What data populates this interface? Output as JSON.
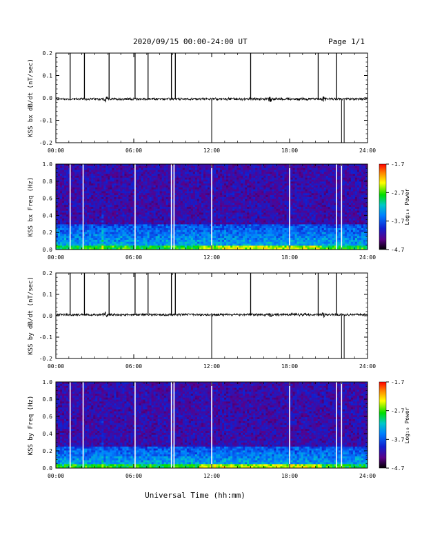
{
  "header": {
    "title": "2020/09/15  00:00-24:00 UT",
    "page": "Page 1/1"
  },
  "xlabel": "Universal Time (hh:mm)",
  "colorbar": {
    "label": "Log₁₀ Power",
    "ticks": [
      "-1.7",
      "-2.7",
      "-3.7",
      "-4.7"
    ],
    "range": [
      -4.7,
      -1.7
    ]
  },
  "chart_data": [
    {
      "type": "line",
      "title": "",
      "ylabel": "KSS bx dB/dt (nT/sec)",
      "xlabel": "",
      "xlim": [
        0,
        24
      ],
      "ylim": [
        -0.2,
        0.2
      ],
      "x_ticks": [
        "00:00",
        "06:00",
        "12:00",
        "18:00",
        "24:00"
      ],
      "y_ticks": [
        "0.2",
        "0.1",
        "0.0",
        "-0.1",
        "-0.2"
      ],
      "series": [
        {
          "baseline": -0.005,
          "spikes_up_hours": [
            1.1,
            2.2,
            4.1,
            6.1,
            7.1,
            8.9,
            9.2,
            15.0,
            20.2,
            21.6
          ],
          "spikes_down_hours": [
            12.0,
            22.0,
            22.2
          ],
          "disturbance_hours": [
            3.8,
            16.5,
            20.6
          ]
        }
      ]
    },
    {
      "type": "heatmap",
      "title": "",
      "ylabel": "KSS bx Freq (Hz)",
      "xlabel": "",
      "xlim": [
        0,
        24
      ],
      "ylim": [
        0.0,
        1.0
      ],
      "x_ticks": [
        "00:00",
        "06:00",
        "12:00",
        "18:00",
        "24:00"
      ],
      "y_ticks": [
        "1.0",
        "0.8",
        "0.6",
        "0.4",
        "0.2",
        "0.0"
      ],
      "gap_lines_hours": [
        1.1,
        2.1,
        6.1,
        8.9,
        9.1,
        12.0,
        18.0,
        21.6,
        22.0
      ],
      "low_freq_enhancement": "0.0-0.05 Hz, strongest 12:00-20:00"
    },
    {
      "type": "line",
      "title": "",
      "ylabel": "KSS by dB/dt (nT/sec)",
      "xlabel": "",
      "xlim": [
        0,
        24
      ],
      "ylim": [
        -0.2,
        0.2
      ],
      "x_ticks": [
        "00:00",
        "06:00",
        "12:00",
        "18:00",
        "24:00"
      ],
      "y_ticks": [
        "0.2",
        "0.1",
        "0.0",
        "-0.1",
        "-0.2"
      ],
      "series": [
        {
          "baseline": 0.005,
          "spikes_up_hours": [
            1.1,
            2.2,
            4.1,
            6.1,
            7.1,
            8.9,
            9.2,
            15.0,
            20.2,
            21.6
          ],
          "spikes_down_hours": [
            12.0,
            22.0,
            22.2
          ],
          "disturbance_hours": [
            3.8,
            16.5,
            20.6
          ]
        }
      ]
    },
    {
      "type": "heatmap",
      "title": "",
      "ylabel": "KSS by Freq (Hz)",
      "xlabel": "",
      "xlim": [
        0,
        24
      ],
      "ylim": [
        0.0,
        1.0
      ],
      "x_ticks": [
        "00:00",
        "06:00",
        "12:00",
        "18:00",
        "24:00"
      ],
      "y_ticks": [
        "1.0",
        "0.8",
        "0.6",
        "0.4",
        "0.2",
        "0.0"
      ],
      "gap_lines_hours": [
        1.1,
        2.1,
        6.1,
        8.9,
        9.1,
        12.0,
        18.0,
        21.6,
        22.0
      ],
      "low_freq_enhancement": "0.0-0.25 Hz band, strongest 12:00-20:00"
    }
  ]
}
